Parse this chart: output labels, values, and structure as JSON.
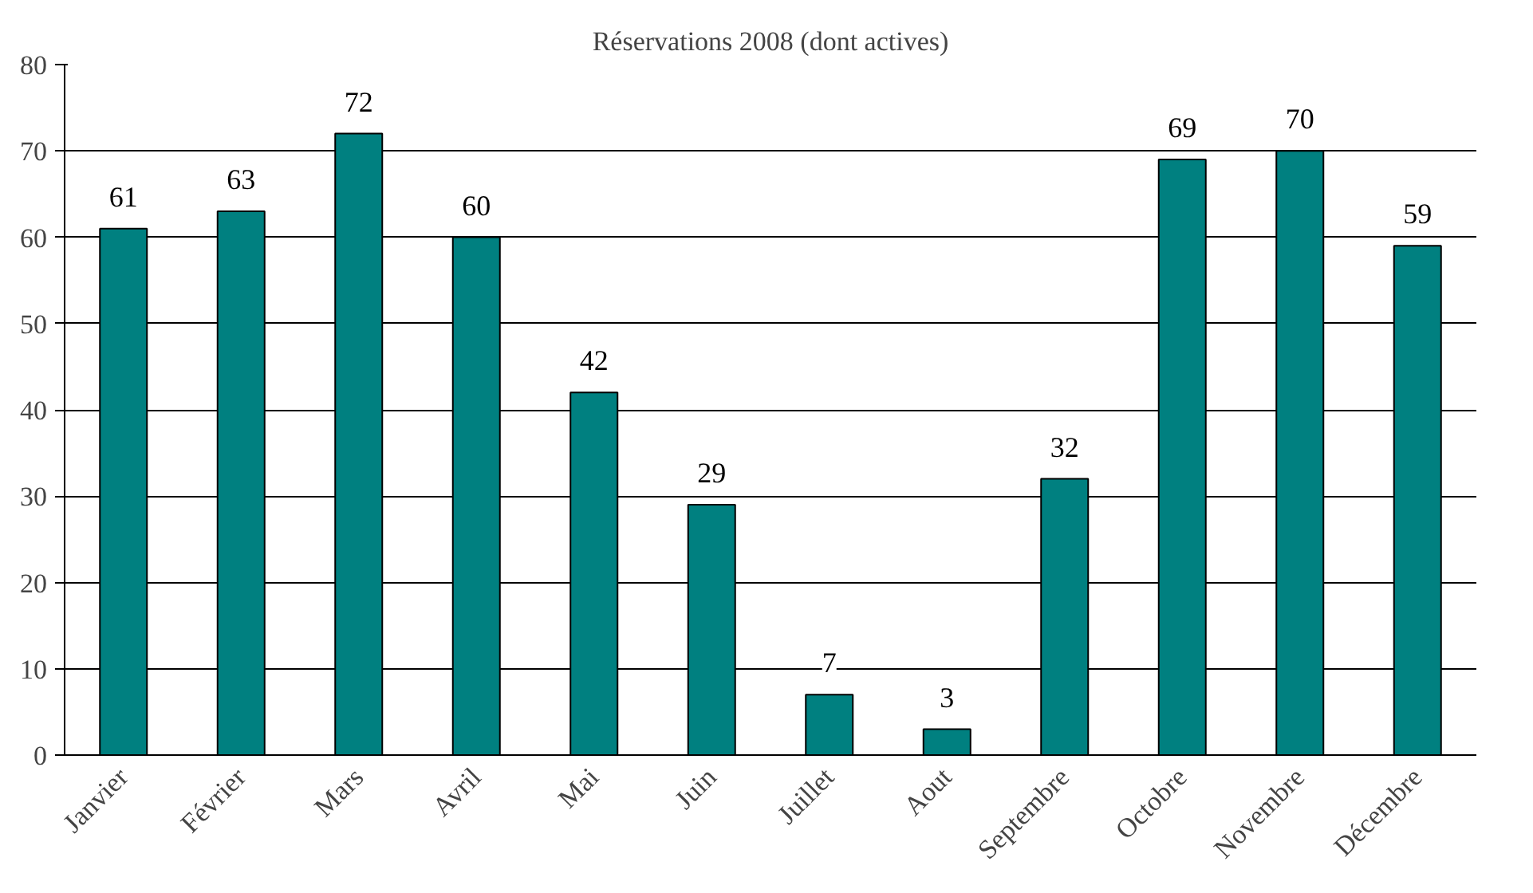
{
  "chart_data": {
    "type": "bar",
    "title": "Réservations 2008 (dont actives)",
    "categories": [
      "Janvier",
      "Février",
      "Mars",
      "Avril",
      "Mai",
      "Juin",
      "Juillet",
      "Aout",
      "Septembre",
      "Octobre",
      "Novembre",
      "Décembre"
    ],
    "values": [
      61,
      63,
      72,
      60,
      42,
      29,
      7,
      3,
      32,
      69,
      70,
      59
    ],
    "color": "#008080",
    "ylim": [
      0,
      80
    ],
    "yticks": [
      0,
      10,
      20,
      30,
      40,
      50,
      60,
      70,
      80
    ],
    "grid": "y",
    "data_labels": true
  }
}
